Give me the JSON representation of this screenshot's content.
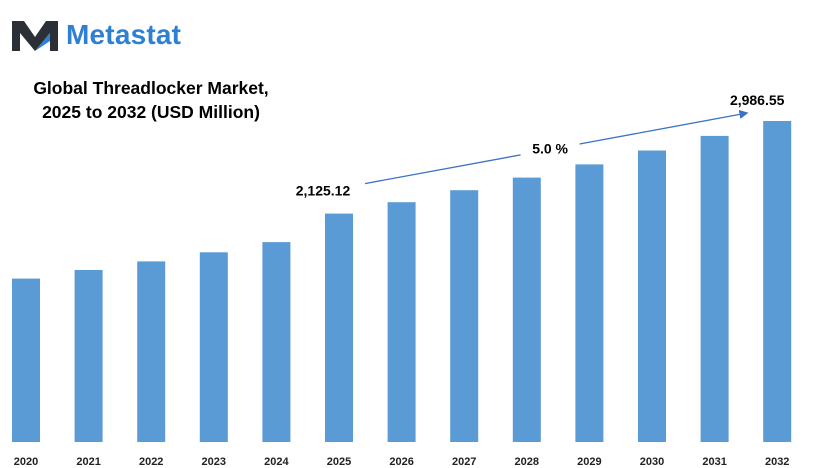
{
  "brand": {
    "name": "Metastat",
    "color": "#2f7fd3",
    "icon": "metastat-m-logo-icon"
  },
  "chart_data": {
    "type": "bar",
    "title": "Global Threadlocker Market,",
    "subtitle": "2025 to 2032 (USD Million)",
    "categories": [
      "2020",
      "2021",
      "2022",
      "2023",
      "2024",
      "2025",
      "2026",
      "2027",
      "2028",
      "2029",
      "2030",
      "2031",
      "2032"
    ],
    "values": [
      1520,
      1600,
      1680,
      1765,
      1860,
      2125.12,
      2231,
      2343,
      2460,
      2583,
      2712,
      2848,
      2986.55
    ],
    "value_labels": [
      {
        "category": "2025",
        "text": "2,125.12"
      },
      {
        "category": "2032",
        "text": "2,986.55"
      }
    ],
    "annotation": {
      "text": "5.0 %",
      "from": "2025",
      "to": "2032"
    },
    "bar_color": "#5b9bd5",
    "ylim": [
      0,
      3000
    ],
    "grid": false,
    "legend": "none",
    "xlabel": "",
    "ylabel": ""
  }
}
